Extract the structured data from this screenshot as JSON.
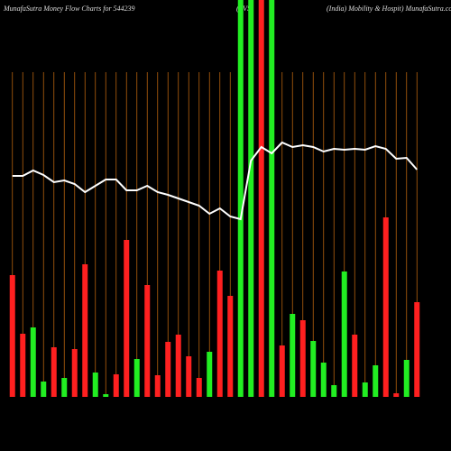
{
  "chart_data": {
    "type": "bar",
    "title": "MunafaSutra  Money Flow  Charts for 544239",
    "subtitle": "(TVS",
    "title_right": "(India) Mobility & Hospit) MunafaSutra.com",
    "ylim": [
      0,
      440
    ],
    "grid": true,
    "grid_color": "#b5620e",
    "values": [
      135,
      70,
      77,
      17,
      55,
      21,
      53,
      147,
      27,
      3,
      25,
      174,
      42,
      124,
      24,
      61,
      69,
      45,
      21,
      50,
      140,
      112,
      440,
      440,
      440,
      440,
      57,
      92,
      85,
      62,
      38,
      13,
      139,
      69,
      16,
      35,
      199,
      4,
      41,
      105
    ],
    "colors": [
      "#ff2020",
      "#ff2020",
      "#22ee22",
      "#22ee22",
      "#ff2020",
      "#22ee22",
      "#ff2020",
      "#ff2020",
      "#22ee22",
      "#22ee22",
      "#ff2020",
      "#ff2020",
      "#22ee22",
      "#ff2020",
      "#ff2020",
      "#ff2020",
      "#ff2020",
      "#ff2020",
      "#ff2020",
      "#22ee22",
      "#ff2020",
      "#ff2020",
      "#22ee22",
      "#22ee22",
      "#ff2020",
      "#22ee22",
      "#ff2020",
      "#22ee22",
      "#ff2020",
      "#22ee22",
      "#22ee22",
      "#22ee22",
      "#22ee22",
      "#ff2020",
      "#22ee22",
      "#22ee22",
      "#ff2020",
      "#ff2020",
      "#22ee22",
      "#ff2020"
    ],
    "line": {
      "color": "#ffffff",
      "values": [
        245,
        245,
        251,
        246,
        238,
        240,
        236,
        227,
        234,
        241,
        241,
        229,
        229,
        234,
        227,
        224,
        220,
        216,
        212,
        203,
        209,
        200,
        197,
        262,
        277,
        270,
        282,
        277,
        279,
        277,
        272,
        275,
        274,
        275,
        274,
        278,
        275,
        264,
        265,
        252
      ]
    }
  }
}
